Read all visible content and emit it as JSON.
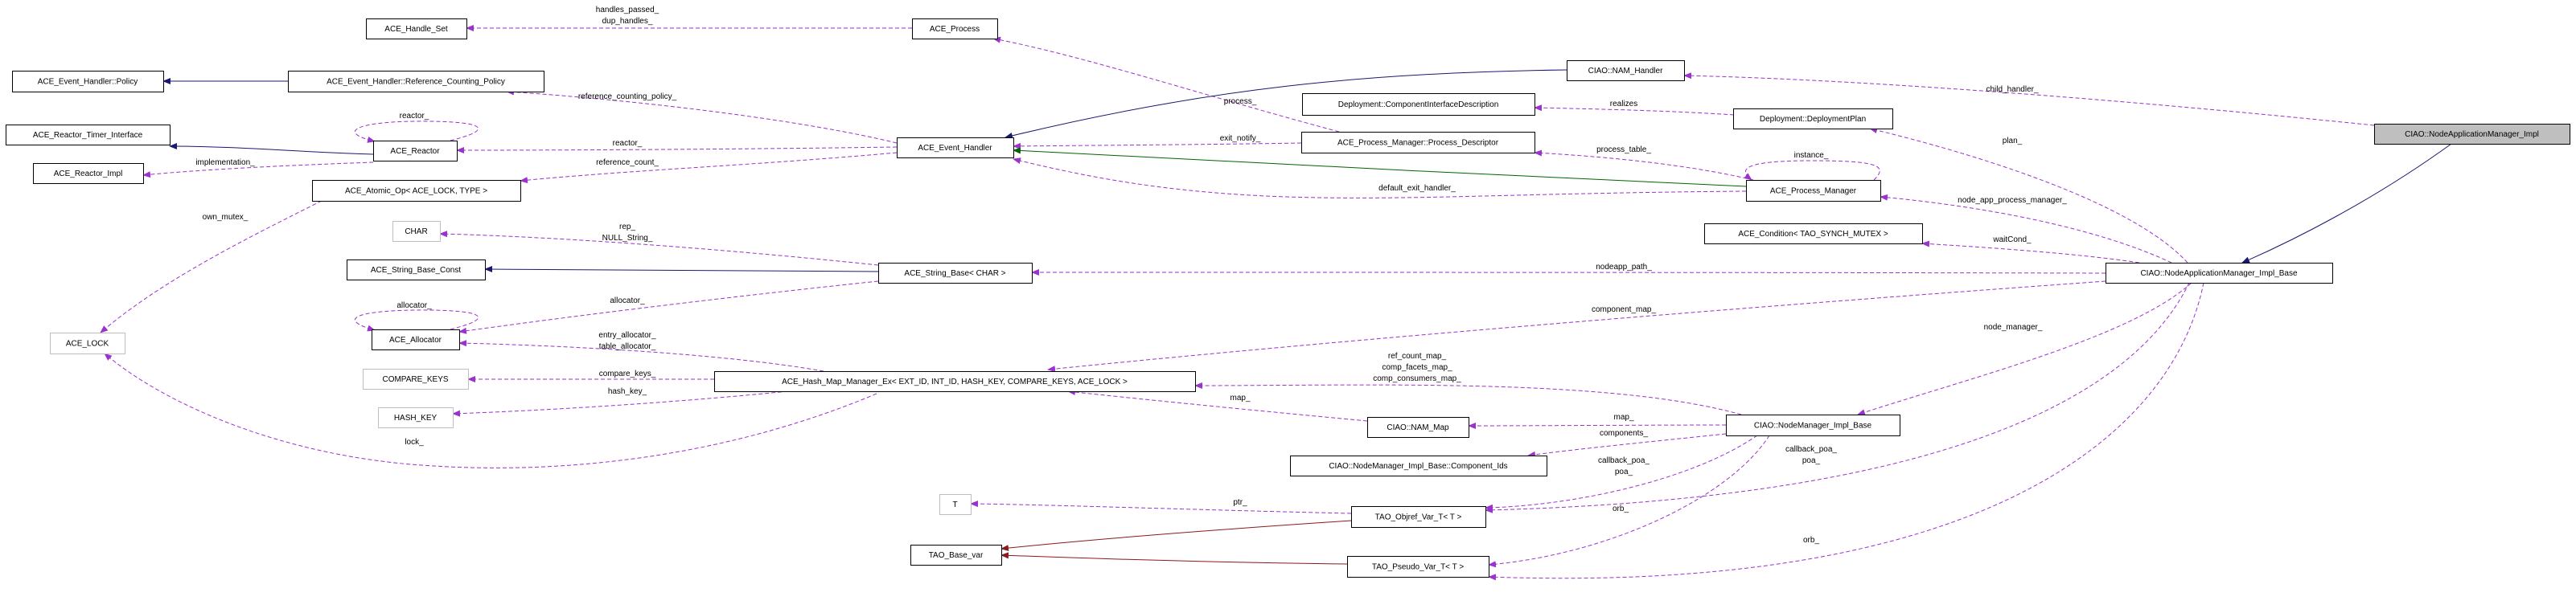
{
  "diagram": {
    "nodes": {
      "handle_set": "ACE_Handle_Set",
      "policy": "ACE_Event_Handler::Policy",
      "ref_policy": "ACE_Event_Handler::Reference_Counting_Policy",
      "timer_iface": "ACE_Reactor_Timer_Interface",
      "reactor": "ACE_Reactor",
      "reactor_impl": "ACE_Reactor_Impl",
      "atomic_op": "ACE_Atomic_Op< ACE_LOCK, TYPE >",
      "char": "CHAR",
      "string_base_const": "ACE_String_Base_Const",
      "allocator": "ACE_Allocator",
      "ace_lock": "ACE_LOCK",
      "compare_keys": "COMPARE_KEYS",
      "hash_key": "HASH_KEY",
      "hash_map": "ACE_Hash_Map_Manager_Ex< EXT_ID, INT_ID, HASH_KEY, COMPARE_KEYS, ACE_LOCK >",
      "process": "ACE_Process",
      "event_handler": "ACE_Event_Handler",
      "string_base": "ACE_String_Base< CHAR >",
      "t": "T",
      "base_var": "TAO_Base_var",
      "nam_handler": "CIAO::NAM_Handler",
      "comp_iface_desc": "Deployment::ComponentInterfaceDescription",
      "process_descriptor": "ACE_Process_Manager::Process_Descriptor",
      "nam_map": "CIAO::NAM_Map",
      "component_ids": "CIAO::NodeManager_Impl_Base::Component_Ids",
      "objref_var": "TAO_Objref_Var_T< T >",
      "pseudo_var": "TAO_Pseudo_Var_T< T >",
      "deployment_plan": "Deployment::DeploymentPlan",
      "process_manager": "ACE_Process_Manager",
      "condition": "ACE_Condition< TAO_SYNCH_MUTEX >",
      "nodemanager_base": "CIAO::NodeManager_Impl_Base",
      "nam_impl_base": "CIAO::NodeApplicationManager_Impl_Base",
      "nam_impl": "CIAO::NodeApplicationManager_Impl"
    },
    "edge_labels": {
      "handles": [
        "handles_passed_",
        "dup_handles_"
      ],
      "ref_counting_policy": [
        "reference_counting_policy_"
      ],
      "reactor_self": [
        "reactor_"
      ],
      "reactor": [
        "reactor_"
      ],
      "implementation": [
        "implementation_"
      ],
      "reference_count": [
        "reference_count_"
      ],
      "own_mutex": [
        "own_mutex_"
      ],
      "rep": [
        "rep_",
        "NULL_String_"
      ],
      "allocator_self": [
        "allocator_"
      ],
      "allocator": [
        "allocator_"
      ],
      "entry_table_allocator": [
        "entry_allocator_",
        "table_allocator_"
      ],
      "compare_keys": [
        "compare_keys_"
      ],
      "hash_key": [
        "hash_key_"
      ],
      "lock": [
        "lock_"
      ],
      "process": [
        "process_"
      ],
      "exit_notify": [
        "exit_notify_"
      ],
      "default_exit_handler": [
        "default_exit_handler_"
      ],
      "realizes": [
        "realizes"
      ],
      "process_table": [
        "process_table_"
      ],
      "nodeapp_path": [
        "nodeapp_path_"
      ],
      "component_map": [
        "component_map_"
      ],
      "maps": [
        "ref_count_map_",
        "comp_facets_map_",
        "comp_consumers_map_"
      ],
      "nam_map_map": [
        "map_"
      ],
      "nm_map": [
        "map_"
      ],
      "components": [
        "components_"
      ],
      "nm_poa": [
        "callback_poa_",
        "poa_"
      ],
      "ptr": [
        "ptr_"
      ],
      "nm_orb": [
        "orb_"
      ],
      "child_handler": [
        "child_handler_"
      ],
      "plan": [
        "plan_"
      ],
      "instance_self": [
        "instance_"
      ],
      "node_app_process_manager": [
        "node_app_process_manager_"
      ],
      "waitcond": [
        "waitCond_"
      ],
      "node_manager": [
        "node_manager_"
      ],
      "base_poa": [
        "callback_poa_",
        "poa_"
      ],
      "base_orb": [
        "orb_"
      ]
    },
    "colors": {
      "inheritance": "#191970",
      "protected_inheritance": "#006400",
      "template": "#8b1a1a",
      "usage": "#9a32cd",
      "focus_fill": "#bfbfbf"
    }
  }
}
